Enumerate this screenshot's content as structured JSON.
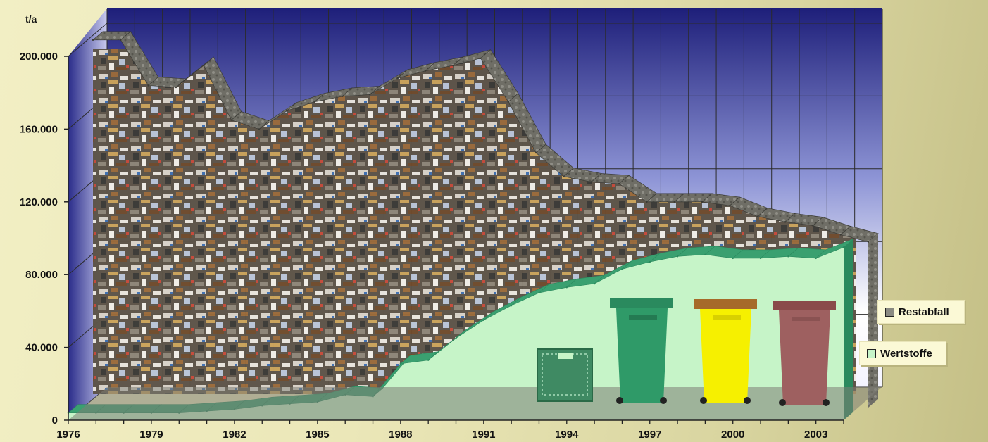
{
  "chart_data": {
    "type": "area",
    "ylabel": "t/a",
    "ylim": [
      0,
      200000
    ],
    "y_ticks": [
      "0",
      "40.000",
      "80.000",
      "120.000",
      "160.000",
      "200.000"
    ],
    "y_tick_values": [
      0,
      40000,
      80000,
      120000,
      160000,
      200000
    ],
    "x_tick_labels": [
      "1976",
      "1979",
      "1982",
      "1985",
      "1988",
      "1991",
      "1994",
      "1997",
      "2000",
      "2003"
    ],
    "x": [
      1976,
      1977,
      1978,
      1979,
      1980,
      1981,
      1982,
      1983,
      1984,
      1985,
      1986,
      1987,
      1988,
      1989,
      1990,
      1991,
      1992,
      1993,
      1994,
      1995,
      1996,
      1997,
      1998,
      1999,
      2000,
      2001,
      2002,
      2003,
      2004
    ],
    "series": [
      {
        "name": "Restabfall",
        "color": "#8a8a82",
        "values": [
          202000,
          202000,
          177000,
          176000,
          188000,
          158000,
          153000,
          163000,
          168000,
          171000,
          172000,
          181000,
          185000,
          188000,
          192000,
          168000,
          140000,
          127000,
          124000,
          123000,
          113000,
          113000,
          113000,
          111000,
          105000,
          102000,
          100000,
          95000,
          91000
        ]
      },
      {
        "name": "Wertstoffe",
        "color": "#c6f4c8",
        "values": [
          4000,
          4000,
          4000,
          4000,
          4000,
          5000,
          6000,
          8000,
          9000,
          10000,
          14000,
          13000,
          31000,
          33000,
          45000,
          55000,
          63000,
          70000,
          73000,
          75000,
          83000,
          87000,
          90000,
          91000,
          89000,
          89000,
          90000,
          89000,
          95000
        ]
      }
    ],
    "grid": true,
    "legend_position": "right",
    "background": "photo of landfill waste",
    "decorations": [
      "crate-icon",
      "green-bin-icon",
      "yellow-bin-icon",
      "brown-bin-icon"
    ]
  }
}
